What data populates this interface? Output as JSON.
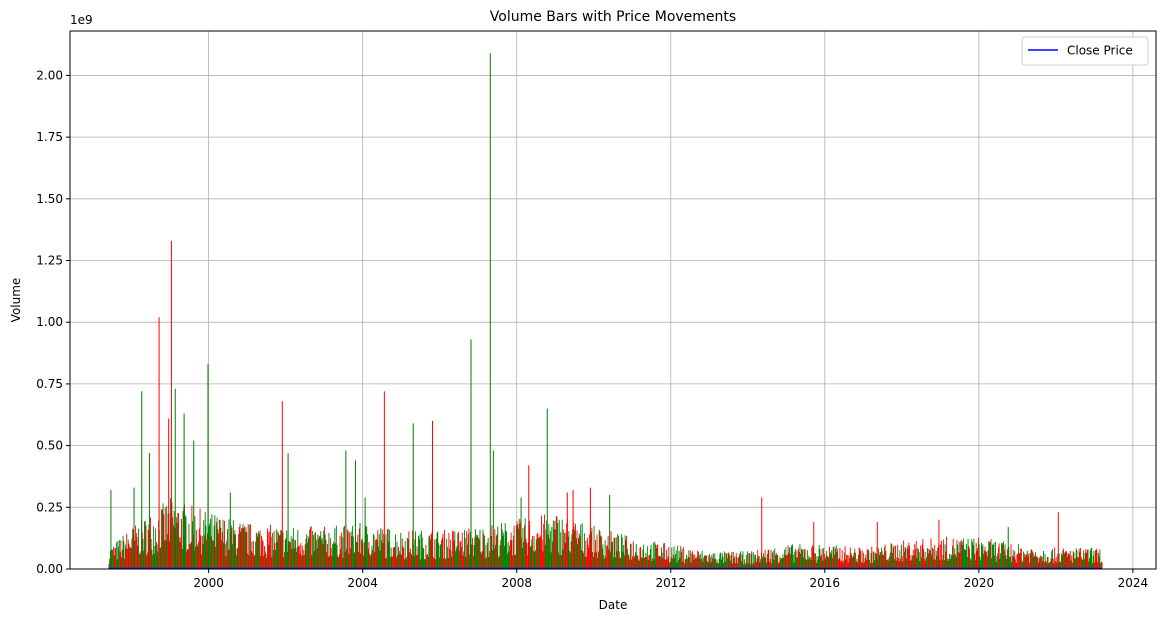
{
  "chart_data": {
    "type": "bar",
    "title": "Volume Bars with Price Movements",
    "xlabel": "Date",
    "ylabel": "Volume",
    "y_offset_label": "1e9",
    "xlim": [
      1996.4,
      2024.6
    ],
    "ylim": [
      0,
      2.18
    ],
    "x_ticks": [
      2000,
      2004,
      2008,
      2012,
      2016,
      2020,
      2024
    ],
    "y_ticks": [
      0.0,
      0.25,
      0.5,
      0.75,
      1.0,
      1.25,
      1.5,
      1.75,
      2.0
    ],
    "y_tick_labels": [
      "0.00",
      "0.25",
      "0.50",
      "0.75",
      "1.00",
      "1.25",
      "1.50",
      "1.75",
      "2.00"
    ],
    "grid": true,
    "legend": {
      "placement": "top-right",
      "entries": [
        {
          "label": "Close Price",
          "color": "#0000ff"
        }
      ]
    },
    "colors": {
      "up": "#008000",
      "down": "#ff0000",
      "close": "#0000ff"
    },
    "range": [
      1997.4,
      2023.2
    ],
    "noise_seed": 7,
    "baseline_profile": [
      [
        1997.4,
        0.06
      ],
      [
        1998.0,
        0.12
      ],
      [
        1999.0,
        0.2
      ],
      [
        2000.0,
        0.16
      ],
      [
        2001.0,
        0.13
      ],
      [
        2002.0,
        0.12
      ],
      [
        2003.0,
        0.12
      ],
      [
        2004.0,
        0.13
      ],
      [
        2005.0,
        0.11
      ],
      [
        2006.0,
        0.11
      ],
      [
        2007.0,
        0.12
      ],
      [
        2008.0,
        0.14
      ],
      [
        2009.0,
        0.16
      ],
      [
        2010.0,
        0.12
      ],
      [
        2011.0,
        0.09
      ],
      [
        2012.0,
        0.07
      ],
      [
        2013.0,
        0.05
      ],
      [
        2014.0,
        0.05
      ],
      [
        2015.0,
        0.07
      ],
      [
        2016.0,
        0.07
      ],
      [
        2017.0,
        0.06
      ],
      [
        2018.0,
        0.08
      ],
      [
        2019.0,
        0.09
      ],
      [
        2020.0,
        0.09
      ],
      [
        2021.0,
        0.07
      ],
      [
        2022.0,
        0.06
      ],
      [
        2023.0,
        0.06
      ],
      [
        2023.2,
        0.06
      ]
    ],
    "spikes": [
      {
        "x": 1997.45,
        "y": 0.32,
        "dir": "up"
      },
      {
        "x": 1998.05,
        "y": 0.33,
        "dir": "up"
      },
      {
        "x": 1998.25,
        "y": 0.72,
        "dir": "up"
      },
      {
        "x": 1998.45,
        "y": 0.47,
        "dir": "up"
      },
      {
        "x": 1998.7,
        "y": 1.02,
        "dir": "down"
      },
      {
        "x": 1998.95,
        "y": 0.61,
        "dir": "down"
      },
      {
        "x": 1999.02,
        "y": 1.33,
        "dir": "down"
      },
      {
        "x": 1999.12,
        "y": 0.73,
        "dir": "up"
      },
      {
        "x": 1999.35,
        "y": 0.63,
        "dir": "up"
      },
      {
        "x": 1999.6,
        "y": 0.52,
        "dir": "up"
      },
      {
        "x": 1999.97,
        "y": 0.83,
        "dir": "up"
      },
      {
        "x": 2000.55,
        "y": 0.31,
        "dir": "up"
      },
      {
        "x": 2001.9,
        "y": 0.68,
        "dir": "down"
      },
      {
        "x": 2002.05,
        "y": 0.47,
        "dir": "up"
      },
      {
        "x": 2003.55,
        "y": 0.48,
        "dir": "up"
      },
      {
        "x": 2003.8,
        "y": 0.44,
        "dir": "up"
      },
      {
        "x": 2004.05,
        "y": 0.29,
        "dir": "up"
      },
      {
        "x": 2004.55,
        "y": 0.72,
        "dir": "down"
      },
      {
        "x": 2005.3,
        "y": 0.59,
        "dir": "up"
      },
      {
        "x": 2005.8,
        "y": 0.6,
        "dir": "down"
      },
      {
        "x": 2006.8,
        "y": 0.93,
        "dir": "up"
      },
      {
        "x": 2007.3,
        "y": 2.09,
        "dir": "up"
      },
      {
        "x": 2007.38,
        "y": 0.48,
        "dir": "up"
      },
      {
        "x": 2008.1,
        "y": 0.29,
        "dir": "up"
      },
      {
        "x": 2008.3,
        "y": 0.42,
        "dir": "down"
      },
      {
        "x": 2008.78,
        "y": 0.65,
        "dir": "up"
      },
      {
        "x": 2009.3,
        "y": 0.31,
        "dir": "down"
      },
      {
        "x": 2009.45,
        "y": 0.32,
        "dir": "down"
      },
      {
        "x": 2009.9,
        "y": 0.33,
        "dir": "down"
      },
      {
        "x": 2010.4,
        "y": 0.3,
        "dir": "up"
      },
      {
        "x": 2014.35,
        "y": 0.29,
        "dir": "down"
      },
      {
        "x": 2015.7,
        "y": 0.19,
        "dir": "down"
      },
      {
        "x": 2017.35,
        "y": 0.19,
        "dir": "down"
      },
      {
        "x": 2018.95,
        "y": 0.2,
        "dir": "down"
      },
      {
        "x": 2020.75,
        "y": 0.17,
        "dir": "up"
      },
      {
        "x": 2022.05,
        "y": 0.23,
        "dir": "down"
      }
    ],
    "series": [
      {
        "name": "Close Price",
        "type": "line",
        "x": [
          1997.4,
          2023.2
        ],
        "y": [
          0.002,
          0.002
        ]
      }
    ]
  }
}
